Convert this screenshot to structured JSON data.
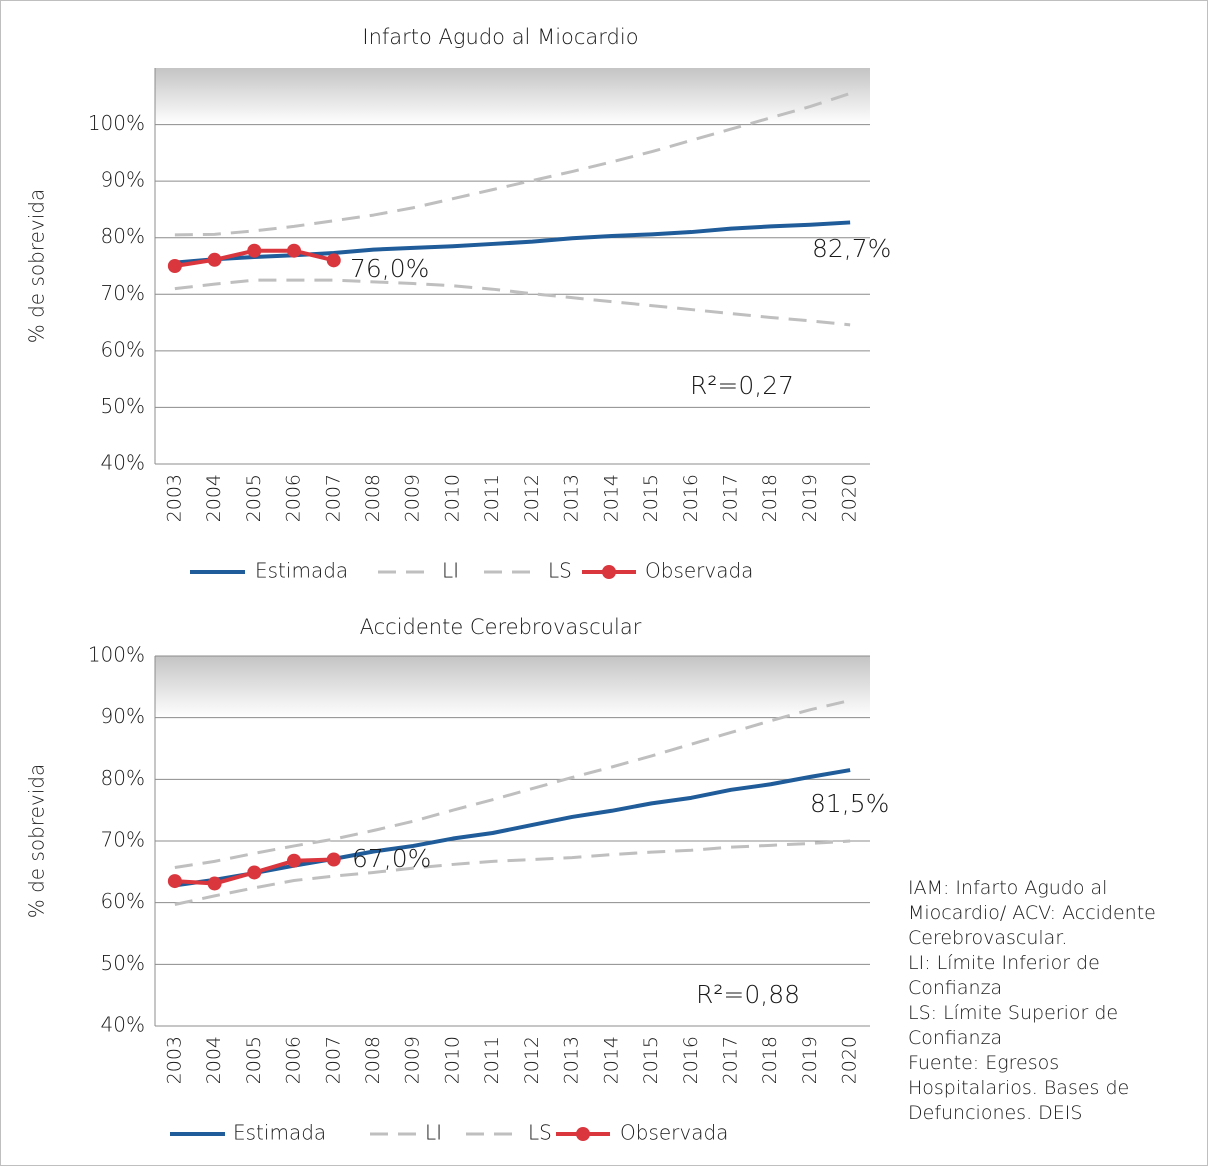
{
  "chart_data": [
    {
      "type": "line",
      "title": "Infarto Agudo al Miocardio",
      "y_label": "% de sobrevida",
      "categories": [
        "2003",
        "2004",
        "2005",
        "2006",
        "2007",
        "2008",
        "2009",
        "2010",
        "2011",
        "2012",
        "2013",
        "2014",
        "2015",
        "2016",
        "2017",
        "2018",
        "2019",
        "2020"
      ],
      "ylim": [
        40,
        110
      ],
      "yticks": [
        {
          "value": 40,
          "label": "40%"
        },
        {
          "value": 50,
          "label": "50%"
        },
        {
          "value": 60,
          "label": "60%"
        },
        {
          "value": 70,
          "label": "70%"
        },
        {
          "value": 80,
          "label": "80%"
        },
        {
          "value": 90,
          "label": "90%"
        },
        {
          "value": 100,
          "label": "100%"
        }
      ],
      "grid": true,
      "series": [
        {
          "name": "Estimada",
          "color": "#1f5c99",
          "values": [
            75.6,
            76.2,
            76.6,
            76.9,
            77.3,
            77.9,
            78.2,
            78.5,
            78.9,
            79.3,
            79.9,
            80.3,
            80.6,
            81.0,
            81.6,
            82.0,
            82.3,
            82.7
          ]
        },
        {
          "name": "LI",
          "color": "#bfbfbf",
          "values": [
            71.0,
            71.8,
            72.5,
            72.5,
            72.5,
            72.2,
            71.9,
            71.5,
            70.9,
            70.1,
            69.4,
            68.7,
            68.0,
            67.3,
            66.6,
            65.9,
            65.3,
            64.6
          ]
        },
        {
          "name": "LS",
          "color": "#bfbfbf",
          "values": [
            80.5,
            80.6,
            81.2,
            82.0,
            83.0,
            84.0,
            85.3,
            86.9,
            88.5,
            90.1,
            91.7,
            93.4,
            95.2,
            97.2,
            99.2,
            101.2,
            103.2,
            105.5
          ]
        },
        {
          "name": "Observada",
          "color": "#d9363e",
          "values": [
            75.0,
            76.1,
            77.7,
            77.7,
            76.0,
            null,
            null,
            null,
            null,
            null,
            null,
            null,
            null,
            null,
            null,
            null,
            null,
            null
          ]
        }
      ],
      "annotations": [
        "76,0%",
        "82,7%",
        "R²=0,27"
      ]
    },
    {
      "type": "line",
      "title": "Accidente Cerebrovascular",
      "y_label": "% de sobrevida",
      "categories": [
        "2003",
        "2004",
        "2005",
        "2006",
        "2007",
        "2008",
        "2009",
        "2010",
        "2011",
        "2012",
        "2013",
        "2014",
        "2015",
        "2016",
        "2017",
        "2018",
        "2019",
        "2020"
      ],
      "ylim": [
        40,
        100
      ],
      "yticks": [
        {
          "value": 40,
          "label": "40%"
        },
        {
          "value": 50,
          "label": "50%"
        },
        {
          "value": 60,
          "label": "60%"
        },
        {
          "value": 70,
          "label": "70%"
        },
        {
          "value": 80,
          "label": "80%"
        },
        {
          "value": 90,
          "label": "90%"
        },
        {
          "value": 100,
          "label": "100%"
        }
      ],
      "grid": true,
      "series": [
        {
          "name": "Estimada",
          "color": "#1f5c99",
          "values": [
            62.8,
            63.7,
            64.8,
            66.0,
            67.1,
            68.3,
            69.2,
            70.4,
            71.3,
            72.6,
            73.9,
            74.9,
            76.1,
            77.0,
            78.3,
            79.2,
            80.4,
            81.5
          ]
        },
        {
          "name": "LI",
          "color": "#bfbfbf",
          "values": [
            59.7,
            61.1,
            62.4,
            63.6,
            64.3,
            64.9,
            65.6,
            66.2,
            66.7,
            67.0,
            67.3,
            67.8,
            68.2,
            68.5,
            69.0,
            69.3,
            69.6,
            70.0
          ]
        },
        {
          "name": "LS",
          "color": "#bfbfbf",
          "values": [
            65.7,
            66.7,
            68.0,
            69.2,
            70.3,
            71.7,
            73.2,
            75.0,
            76.7,
            78.5,
            80.3,
            82.0,
            83.8,
            85.7,
            87.6,
            89.5,
            91.3,
            92.8
          ]
        },
        {
          "name": "Observada",
          "color": "#d9363e",
          "values": [
            63.5,
            63.1,
            64.9,
            66.8,
            67.0,
            null,
            null,
            null,
            null,
            null,
            null,
            null,
            null,
            null,
            null,
            null,
            null,
            null
          ]
        }
      ],
      "annotations": [
        "67,0%",
        "81,5%",
        "R²=0,88"
      ]
    }
  ],
  "note": [
    "IAM: Infarto Agudo al",
    "Miocardio/ ACV: Accidente",
    "Cerebrovascular.",
    "LI: Límite Inferior de",
    "Confianza",
    "LS: Límite Superior de",
    "Confianza",
    "Fuente: Egresos",
    "Hospitalarios. Bases de",
    "Defunciones. DEIS"
  ]
}
